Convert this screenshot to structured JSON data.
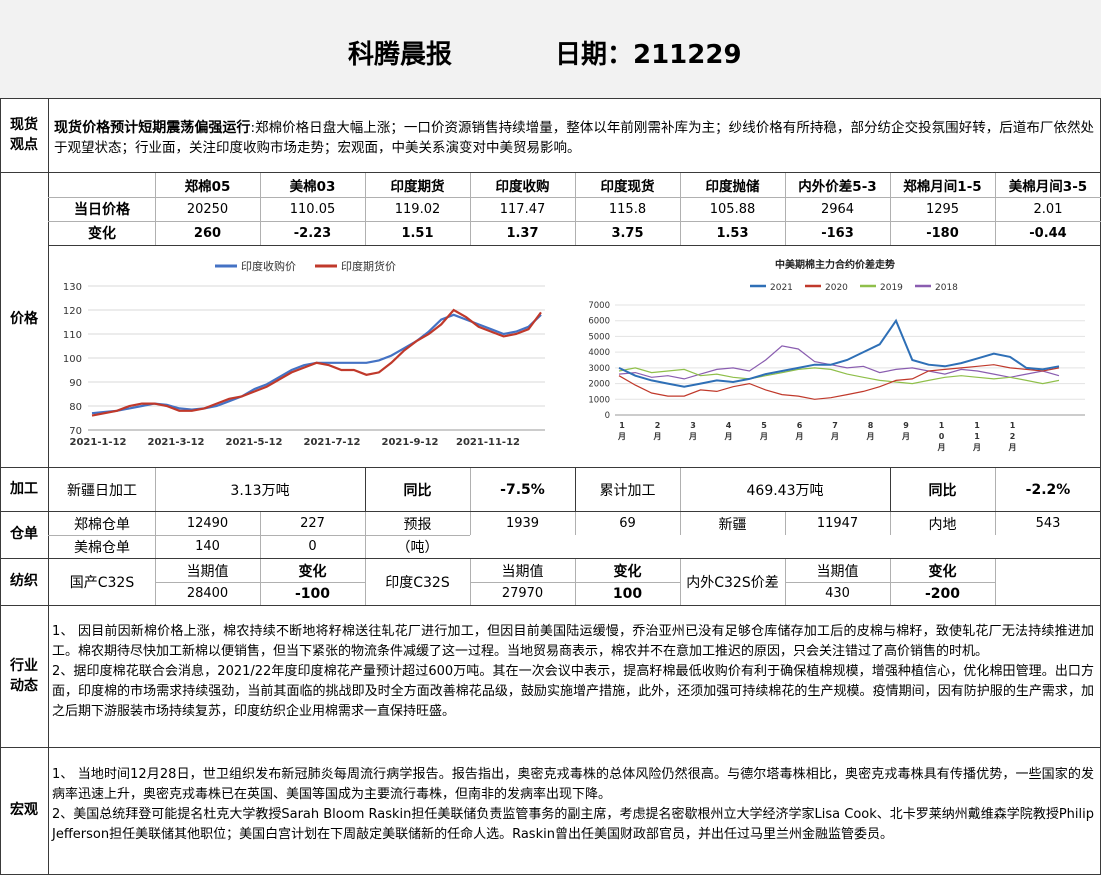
{
  "header": {
    "title": "科腾晨报",
    "date_label": "日期：211229"
  },
  "sections": {
    "spot": "现货\n观点",
    "price": "价格",
    "process": "加工",
    "warehouse": "仓单",
    "textile": "纺织",
    "industry": "行业\n动态",
    "macro": "宏观"
  },
  "spot_view": {
    "headline": "现货价格预计短期震荡偏强运行",
    "body": ":郑棉价格日盘大幅上涨；一口价资源销售持续增量，整体以年前刚需补库为主；纱线价格有所持稳，部分纺企交投氛围好转，后道布厂依然处于观望状态；行业面，关注印度收购市场走势；宏观面，中美关系演变对中美贸易影响。"
  },
  "price_table": {
    "headers": [
      "郑棉05",
      "美棉03",
      "印度期货",
      "印度收购",
      "印度现货",
      "印度抛储",
      "内外价差5-3",
      "郑棉月间1-5",
      "美棉月间3-5"
    ],
    "row1_label": "当日价格",
    "row1": [
      "20250",
      "110.05",
      "119.02",
      "117.47",
      "115.8",
      "105.88",
      "2964",
      "1295",
      "2.01"
    ],
    "row2_label": "变化",
    "row2": [
      "260",
      "-2.23",
      "1.51",
      "1.37",
      "3.75",
      "1.53",
      "-163",
      "-180",
      "-0.44"
    ]
  },
  "chart_data": [
    {
      "type": "line",
      "title": "",
      "legend": [
        "印度收购价",
        "印度期货价"
      ],
      "colors": [
        "#4472c4",
        "#c0392b"
      ],
      "x_labels": [
        "2021-1-12",
        "2021-3-12",
        "2021-5-12",
        "2021-7-12",
        "2021-9-12",
        "2021-11-12"
      ],
      "y_ticks": [
        70,
        80,
        90,
        100,
        110,
        120,
        130
      ],
      "ylim": [
        70,
        130
      ],
      "series": [
        {
          "name": "印度收购价",
          "values": [
            77,
            77.5,
            78,
            79,
            80,
            81,
            80.5,
            79,
            78.5,
            79,
            80,
            82,
            84,
            87,
            89,
            92,
            95,
            97,
            98,
            98,
            98,
            98,
            98,
            99,
            101,
            104,
            107,
            111,
            116,
            118,
            116,
            114,
            112,
            110,
            111,
            113,
            118
          ]
        },
        {
          "name": "印度期货价",
          "values": [
            76,
            77,
            78,
            80,
            81,
            81,
            80,
            78,
            78,
            79,
            81,
            83,
            84,
            86,
            88,
            91,
            94,
            96,
            98,
            97,
            95,
            95,
            93,
            94,
            98,
            103,
            107,
            110,
            114,
            120,
            117,
            113,
            111,
            109,
            110,
            112,
            119
          ]
        }
      ]
    },
    {
      "type": "line",
      "title": "中美期棉主力合约价差走势",
      "legend": [
        "2021",
        "2020",
        "2019",
        "2018"
      ],
      "colors": [
        "#2e6fb6",
        "#c0392b",
        "#8fbf4a",
        "#8a5db0"
      ],
      "y_ticks": [
        0,
        1000,
        2000,
        3000,
        4000,
        5000,
        6000,
        7000
      ],
      "ylim": [
        0,
        7000
      ],
      "x_labels": [
        "1\n月",
        "2\n月",
        "3\n月",
        "4\n月",
        "5\n月",
        "6\n月",
        "7\n月",
        "8\n月",
        "9\n月",
        "1\n0\n月",
        "1\n1\n月",
        "1\n2\n月"
      ],
      "series": [
        {
          "name": "2021",
          "values": [
            3000,
            2500,
            2200,
            2000,
            1800,
            2000,
            2200,
            2100,
            2300,
            2600,
            2800,
            3000,
            3200,
            3200,
            3500,
            4000,
            4500,
            6000,
            3500,
            3200,
            3100,
            3300,
            3600,
            3900,
            3700,
            3000,
            2900,
            3100
          ]
        },
        {
          "name": "2020",
          "values": [
            2500,
            1900,
            1400,
            1200,
            1200,
            1600,
            1500,
            1800,
            2000,
            1600,
            1300,
            1200,
            1000,
            1100,
            1300,
            1500,
            1800,
            2200,
            2300,
            2800,
            2900,
            3000,
            3100,
            3200,
            3000,
            2900,
            2800,
            3000
          ]
        },
        {
          "name": "2019",
          "values": [
            2800,
            3000,
            2700,
            2800,
            2900,
            2500,
            2600,
            2400,
            2300,
            2500,
            2700,
            2900,
            3000,
            2900,
            2600,
            2400,
            2200,
            2100,
            2000,
            2200,
            2400,
            2500,
            2400,
            2300,
            2400,
            2200,
            2000,
            2200
          ]
        },
        {
          "name": "2018",
          "values": [
            2600,
            2700,
            2400,
            2500,
            2300,
            2600,
            2900,
            3000,
            2800,
            3500,
            4400,
            4200,
            3400,
            3200,
            3000,
            3100,
            2700,
            2900,
            3000,
            2800,
            2600,
            2900,
            2800,
            2600,
            2400,
            2600,
            2800,
            2500
          ]
        }
      ]
    }
  ],
  "process": {
    "xinjiang_label": "新疆日加工",
    "xinjiang_value": "3.13万吨",
    "yoy_label": "同比",
    "xinjiang_yoy": "-7.5%",
    "cumulative_label": "累计加工",
    "cumulative_value": "469.43万吨",
    "yoy_label2": "同比",
    "cumulative_yoy": "-2.2%"
  },
  "warehouse": {
    "zc_label": "郑棉仓单",
    "zc_value": "12490",
    "zc_change": "227",
    "forecast_label": "预报",
    "forecast_value": "1939",
    "forecast_change": "69",
    "xinjiang_label": "新疆",
    "xinjiang_value": "11947",
    "inland_label": "内地",
    "inland_value": "543",
    "us_label": "美棉仓单",
    "us_value": "140",
    "us_change": "0",
    "unit": "（吨）"
  },
  "textile": {
    "domestic_label": "国产C32S",
    "current_label": "当期值",
    "change_label": "变化",
    "domestic_value": "28400",
    "domestic_change": "-100",
    "india_label": "印度C32S",
    "current_label2": "当期值",
    "change_label2": "变化",
    "india_value": "27970",
    "india_change": "100",
    "spread_label": "内外C32S价差",
    "current_label3": "当期值",
    "change_label3": "变化",
    "spread_value": "430",
    "spread_change": "-200"
  },
  "industry": {
    "p1": "1、  因目前因新棉价格上涨，棉农持续不断地将籽棉送往轧花厂进行加工，但因目前美国陆运缓慢，乔治亚州已没有足够仓库储存加工后的皮棉与棉籽，致使轧花厂无法持续推进加工。棉农期待尽快加工新棉以便销售，但当下紧张的物流条件减缓了这一过程。当地贸易商表示，棉农并不在意加工推迟的原因，只会关注错过了高价销售的时机。",
    "p2": "2、据印度棉花联合会消息，2021/22年度印度棉花产量预计超过600万吨。其在一次会议中表示，提高籽棉最低收购价有利于确保植棉规模，增强种植信心，优化棉田管理。出口方面，印度棉的市场需求持续强劲，当前其面临的挑战即及时全方面改善棉花品级，鼓励实施增产措施，此外，还须加强可持续棉花的生产规模。疫情期间，因有防护服的生产需求，加之后期下游服装市场持续复苏，印度纺织企业用棉需求一直保持旺盛。"
  },
  "macro": {
    "p1": "1、  当地时间12月28日，世卫组织发布新冠肺炎每周流行病学报告。报告指出，奥密克戎毒株的总体风险仍然很高。与德尔塔毒株相比，奥密克戎毒株具有传播优势，一些国家的发病率迅速上升，奥密克戎毒株已在英国、美国等国成为主要流行毒株，但南非的发病率出现下降。",
    "p2": "2、美国总统拜登可能提名杜克大学教授Sarah Bloom Raskin担任美联储负责监管事务的副主席，考虑提名密歇根州立大学经济学家Lisa Cook、北卡罗莱纳州戴维森学院教授Philip Jefferson担任美联储其他职位；美国白宫计划在下周敲定美联储新的任命人选。Raskin曾出任美国财政部官员，并出任过马里兰州金融监管委员。"
  }
}
